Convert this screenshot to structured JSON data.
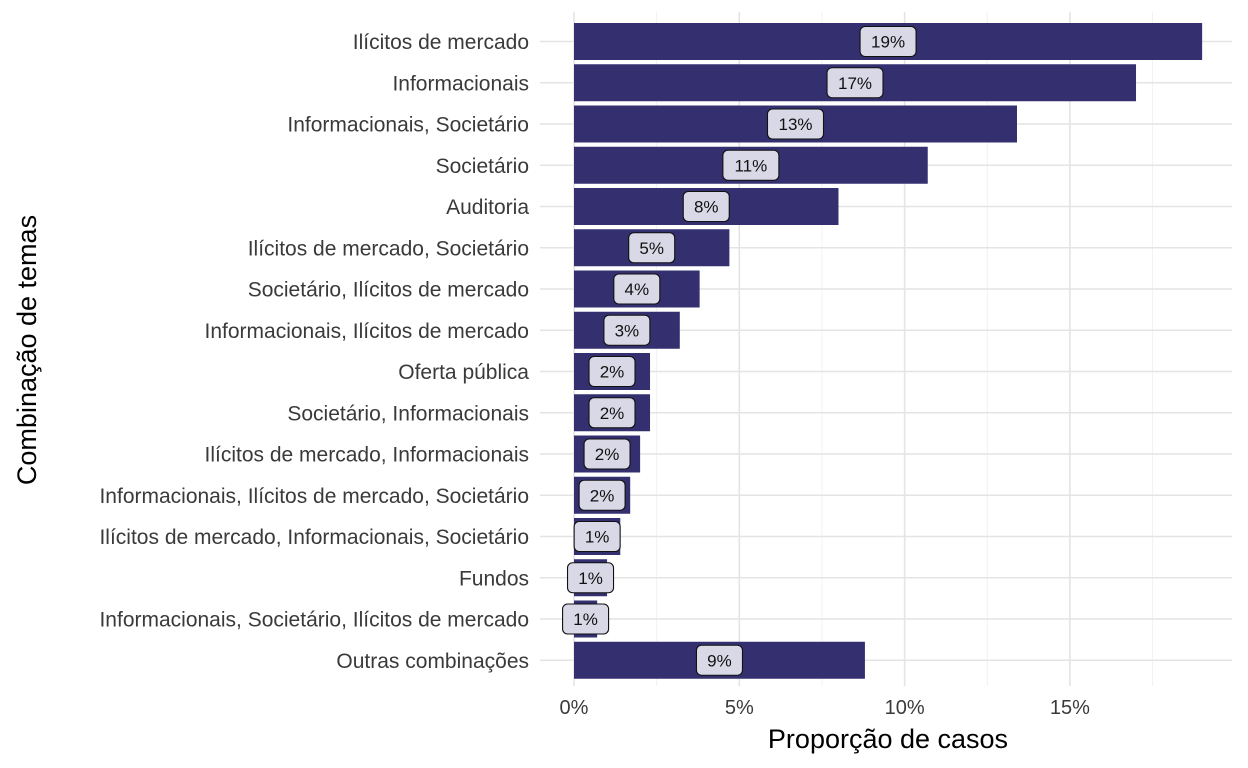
{
  "chart_data": {
    "type": "bar",
    "orientation": "horizontal",
    "title": "",
    "xlabel": "Proporção de casos",
    "ylabel": "Combinação de temas",
    "xlim": [
      0,
      0.19
    ],
    "xticks": [
      0,
      0.05,
      0.1,
      0.15
    ],
    "xtick_labels": [
      "0%",
      "5%",
      "10%",
      "15%"
    ],
    "grid": true,
    "legend": "none",
    "bar_color": "#34306f",
    "label_fill": "#d9d8e6",
    "categories": [
      "Ilícitos de mercado",
      "Informacionais",
      "Informacionais, Societário",
      "Societário",
      "Auditoria",
      "Ilícitos de mercado, Societário",
      "Societário, Ilícitos de mercado",
      "Informacionais, Ilícitos de mercado",
      "Oferta pública",
      "Societário, Informacionais",
      "Ilícitos de mercado, Informacionais",
      "Informacionais, Ilícitos de mercado, Societário",
      "Ilícitos de mercado, Informacionais, Societário",
      "Fundos",
      "Informacionais, Societário, Ilícitos de mercado",
      "Outras combinações"
    ],
    "values": [
      0.19,
      0.17,
      0.134,
      0.107,
      0.08,
      0.047,
      0.038,
      0.032,
      0.023,
      0.023,
      0.02,
      0.017,
      0.014,
      0.01,
      0.007,
      0.088
    ],
    "data_labels": [
      "19%",
      "17%",
      "13%",
      "11%",
      "8%",
      "5%",
      "4%",
      "3%",
      "2%",
      "2%",
      "2%",
      "2%",
      "1%",
      "1%",
      "1%",
      "9%"
    ]
  }
}
